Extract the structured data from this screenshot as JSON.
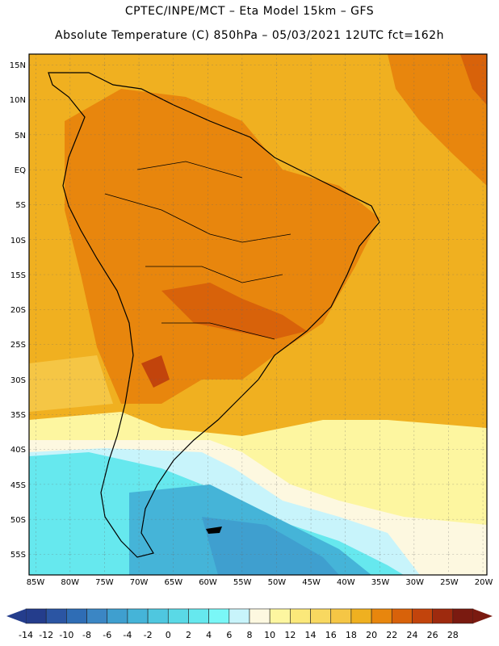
{
  "title_line1": "CPTEC/INPE/MCT –  Eta Model 15km – GFS",
  "title_line2": "Absolute Temperature (C) 850hPa – 05/03/2021 12UTC fct=162h",
  "lat_labels": [
    "15N",
    "10N",
    "5N",
    "EQ",
    "5S",
    "10S",
    "15S",
    "20S",
    "25S",
    "30S",
    "35S",
    "40S",
    "45S",
    "50S",
    "55S"
  ],
  "lon_labels": [
    "85W",
    "80W",
    "75W",
    "70W",
    "65W",
    "60W",
    "55W",
    "50W",
    "45W",
    "40W",
    "35W",
    "30W",
    "25W",
    "20W"
  ],
  "colorbar": {
    "labels": [
      "-14",
      "-12",
      "-10",
      "-8",
      "-6",
      "-4",
      "-2",
      "0",
      "2",
      "4",
      "6",
      "8",
      "10",
      "12",
      "14",
      "16",
      "18",
      "20",
      "22",
      "24",
      "26",
      "28"
    ],
    "colors": [
      "#243d8c",
      "#2b55a3",
      "#2f6db5",
      "#3b86c4",
      "#3f9fcf",
      "#45b4d8",
      "#4fc7df",
      "#5ad9e6",
      "#66e8ee",
      "#7af7f7",
      "#c8f4fb",
      "#fdf8e0",
      "#fdf6a0",
      "#fbe87a",
      "#f8d860",
      "#f5c645",
      "#efb020",
      "#e8860d",
      "#d8620a",
      "#c2440c",
      "#9e2a0e",
      "#7a1a10"
    ]
  }
}
